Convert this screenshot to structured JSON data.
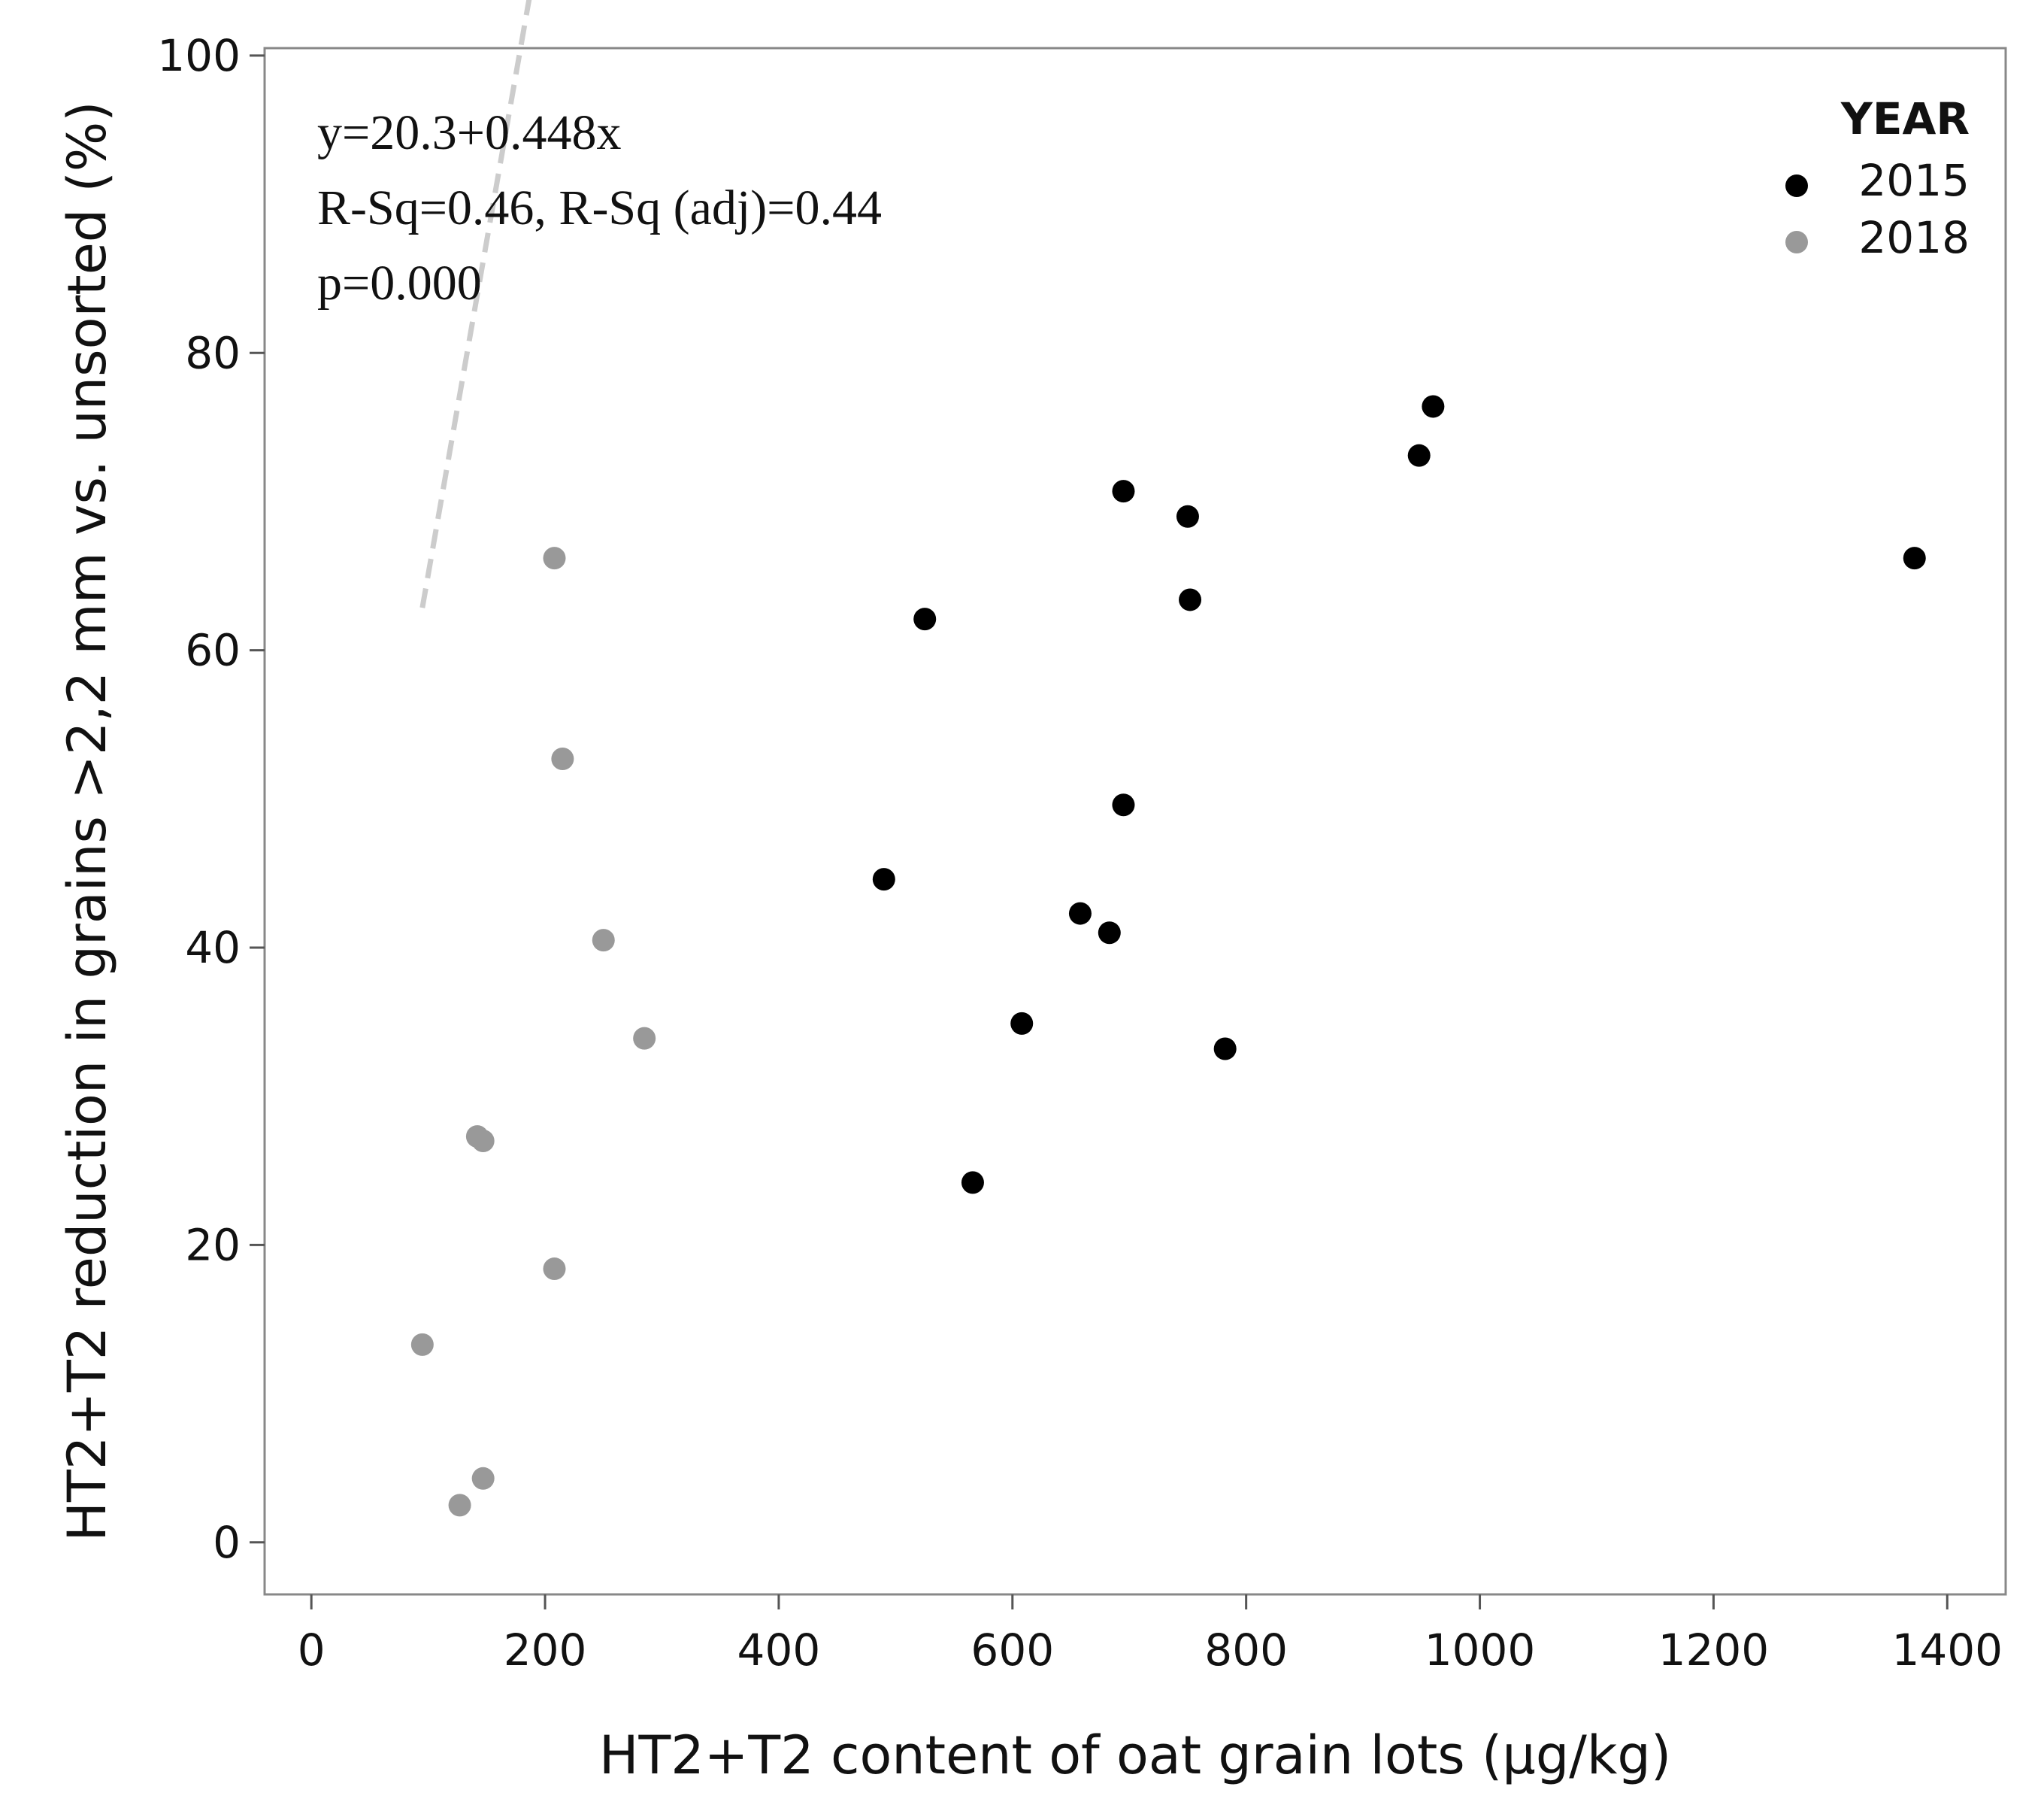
{
  "chart_data": {
    "type": "scatter",
    "xlabel": "HT2+T2 content of oat grain lots (μg/kg)",
    "ylabel": "HT2+T2 reduction in grains >2,2 mm vs. unsorted (%)",
    "xlim": [
      -40,
      1450
    ],
    "ylim": [
      -3.5,
      100.5
    ],
    "xticks": [
      0,
      200,
      400,
      600,
      800,
      1000,
      1200,
      1400
    ],
    "yticks": [
      0,
      20,
      40,
      60,
      80,
      100
    ],
    "xtick_labels": [
      "0",
      "200",
      "400",
      "600",
      "800",
      "1000",
      "1200",
      "1400"
    ],
    "ytick_labels": [
      "0",
      "20",
      "40",
      "60",
      "80",
      "100"
    ],
    "annotations": [
      "y=20.3+0.448x",
      "R-Sq=0.46, R-Sq (adj)=0.44",
      "p=0.000"
    ],
    "legend": {
      "title": "YEAR",
      "position": "top-right"
    },
    "series": [
      {
        "name": "2015",
        "color": "#000000",
        "points": [
          [
            490,
            44.6
          ],
          [
            525,
            62.1
          ],
          [
            566,
            24.2
          ],
          [
            608,
            34.9
          ],
          [
            658,
            42.3
          ],
          [
            683,
            41.0
          ],
          [
            695,
            70.7
          ],
          [
            695,
            49.6
          ],
          [
            750,
            69.0
          ],
          [
            752,
            63.4
          ],
          [
            782,
            33.2
          ],
          [
            948,
            73.1
          ],
          [
            960,
            76.4
          ],
          [
            1372,
            66.2
          ]
        ]
      },
      {
        "name": "2018",
        "color": "#999999",
        "points": [
          [
            95,
            13.3
          ],
          [
            127,
            2.5
          ],
          [
            142,
            27.3
          ],
          [
            147,
            27.0
          ],
          [
            147,
            4.3
          ],
          [
            208,
            66.2
          ],
          [
            208,
            18.4
          ],
          [
            215,
            52.7
          ],
          [
            250,
            40.5
          ],
          [
            285,
            33.9
          ]
        ]
      }
    ],
    "fit_line": {
      "intercept": 20.3,
      "slope": 0.448,
      "x_range": [
        95,
        1275
      ],
      "color": "#cccccc",
      "style": "dashed"
    }
  }
}
